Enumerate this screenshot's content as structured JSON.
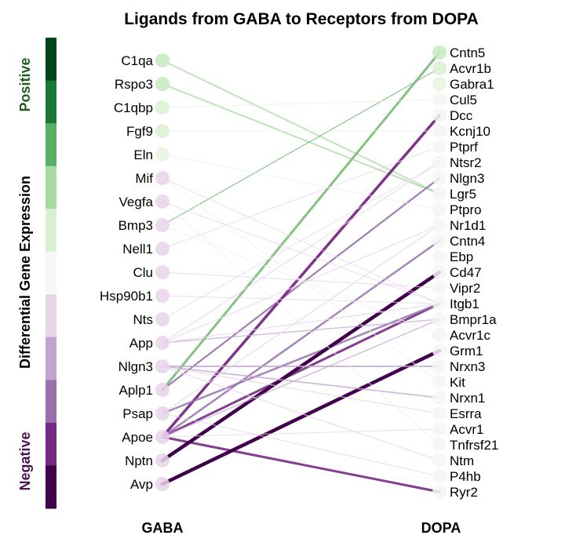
{
  "chart_data": {
    "type": "bipartite-network",
    "title": "Ligands from GABA to Receptors from DOPA",
    "left_axis_label": "GABA",
    "right_axis_label": "DOPA",
    "legend": {
      "title": "Differential Gene Expression",
      "positive_label": "Positive",
      "negative_label": "Negative",
      "positive_color": "#1b5e20",
      "negative_color": "#4a1350",
      "colors": [
        "#00441b",
        "#1b7837",
        "#5aae61",
        "#a6dba0",
        "#d9f0d3",
        "#f7f7f7",
        "#e7d4e8",
        "#c2a5cf",
        "#9970ab",
        "#762a83",
        "#40004b"
      ]
    },
    "ligands": [
      {
        "name": "C1qa",
        "level": 3
      },
      {
        "name": "Rspo3",
        "level": 3
      },
      {
        "name": "C1qbp",
        "level": 2
      },
      {
        "name": "Fgf9",
        "level": 2
      },
      {
        "name": "Eln",
        "level": 1
      },
      {
        "name": "Mif",
        "level": -1
      },
      {
        "name": "Vegfa",
        "level": -1
      },
      {
        "name": "Bmp3",
        "level": -1
      },
      {
        "name": "Nell1",
        "level": -1
      },
      {
        "name": "Clu",
        "level": -1
      },
      {
        "name": "Hsp90b1",
        "level": -1
      },
      {
        "name": "Nts",
        "level": -1
      },
      {
        "name": "App",
        "level": -1
      },
      {
        "name": "Nlgn3",
        "level": -1
      },
      {
        "name": "Aplp1",
        "level": -1
      },
      {
        "name": "Psap",
        "level": -1
      },
      {
        "name": "Apoe",
        "level": -1
      },
      {
        "name": "Nptn",
        "level": -1
      },
      {
        "name": "Avp",
        "level": -1
      }
    ],
    "receptors": [
      {
        "name": "Cntn5",
        "level": 3
      },
      {
        "name": "Acvr1b",
        "level": 2
      },
      {
        "name": "Gabra1",
        "level": 1
      },
      {
        "name": "Cul5",
        "level": 0
      },
      {
        "name": "Dcc",
        "level": 0
      },
      {
        "name": "Kcnj10",
        "level": 0
      },
      {
        "name": "Ptprf",
        "level": 0
      },
      {
        "name": "Ntsr2",
        "level": 0
      },
      {
        "name": "Nlgn3",
        "level": 0
      },
      {
        "name": "Lgr5",
        "level": 0
      },
      {
        "name": "Ptpro",
        "level": 0
      },
      {
        "name": "Nr1d1",
        "level": 0
      },
      {
        "name": "Cntn4",
        "level": 0
      },
      {
        "name": "Ebp",
        "level": 0
      },
      {
        "name": "Cd47",
        "level": 0
      },
      {
        "name": "Vipr2",
        "level": 0
      },
      {
        "name": "Itgb1",
        "level": 0
      },
      {
        "name": "Bmpr1a",
        "level": 0
      },
      {
        "name": "Acvr1c",
        "level": 0
      },
      {
        "name": "Grm1",
        "level": 0
      },
      {
        "name": "Nrxn3",
        "level": 0
      },
      {
        "name": "Kit",
        "level": 0
      },
      {
        "name": "Nrxn1",
        "level": 0
      },
      {
        "name": "Esrra",
        "level": 0
      },
      {
        "name": "Acvr1",
        "level": 0
      },
      {
        "name": "Tnfrsf21",
        "level": 0
      },
      {
        "name": "Ntm",
        "level": 0
      },
      {
        "name": "P4hb",
        "level": 0
      },
      {
        "name": "Ryr2",
        "level": 0
      }
    ],
    "links": [
      {
        "from": "C1qa",
        "to": "Lgr5",
        "color": "#a6dba0",
        "width": 1.8,
        "opacity": 0.8
      },
      {
        "from": "Rspo3",
        "to": "Lgr5",
        "color": "#a6dba0",
        "width": 1.8,
        "opacity": 0.8
      },
      {
        "from": "Bmp3",
        "to": "Acvr1b",
        "color": "#5aae61",
        "width": 1.0,
        "opacity": 0.85
      },
      {
        "from": "Aplp1",
        "to": "Cntn5",
        "color": "#7fbf7b",
        "width": 3.0,
        "opacity": 0.95
      },
      {
        "from": "Aplp1",
        "to": "Nlgn3",
        "color": "#9970ab",
        "width": 2.2,
        "opacity": 0.9
      },
      {
        "from": "Apoe",
        "to": "Dcc",
        "color": "#762a83",
        "width": 3.5,
        "opacity": 0.95
      },
      {
        "from": "Apoe",
        "to": "Itgb1",
        "color": "#762a83",
        "width": 3.0,
        "opacity": 0.9
      },
      {
        "from": "Apoe",
        "to": "Ryr2",
        "color": "#762a83",
        "width": 3.0,
        "opacity": 0.9
      },
      {
        "from": "Apoe",
        "to": "Cntn4",
        "color": "#9970ab",
        "width": 2.5,
        "opacity": 0.85
      },
      {
        "from": "Psap",
        "to": "Itgb1",
        "color": "#9970ab",
        "width": 2.5,
        "opacity": 0.85
      },
      {
        "from": "Nptn",
        "to": "Cd47",
        "color": "#40004b",
        "width": 4.5,
        "opacity": 1.0
      },
      {
        "from": "Avp",
        "to": "Grm1",
        "color": "#40004b",
        "width": 4.5,
        "opacity": 1.0
      },
      {
        "from": "Nlgn3",
        "to": "Nrxn3",
        "color": "#c2a5cf",
        "width": 2.0,
        "opacity": 0.8
      },
      {
        "from": "Nlgn3",
        "to": "Nrxn1",
        "color": "#c2a5cf",
        "width": 1.8,
        "opacity": 0.75
      },
      {
        "from": "App",
        "to": "Bmpr1a",
        "color": "#c2a5cf",
        "width": 1.5,
        "opacity": 0.7
      },
      {
        "from": "Apoe",
        "to": "Bmpr1a",
        "color": "#c2a5cf",
        "width": 1.5,
        "opacity": 0.7
      },
      {
        "from": "Psap",
        "to": "Nr1d1",
        "color": "#e7d4e8",
        "width": 1.3,
        "opacity": 0.8
      },
      {
        "from": "App",
        "to": "Ntsr2",
        "color": "#e7d4e8",
        "width": 1.2,
        "opacity": 0.8
      },
      {
        "from": "App",
        "to": "Itgb1",
        "color": "#e7d4e8",
        "width": 1.2,
        "opacity": 0.8
      },
      {
        "from": "App",
        "to": "Nr1d1",
        "color": "#e7d4e8",
        "width": 1.2,
        "opacity": 0.8
      },
      {
        "from": "Nlgn3",
        "to": "Ntm",
        "color": "#e7d4e8",
        "width": 1.2,
        "opacity": 0.8
      },
      {
        "from": "Nlgn3",
        "to": "Esrra",
        "color": "#e7d4e8",
        "width": 1.2,
        "opacity": 0.8
      },
      {
        "from": "Mif",
        "to": "Itgb1",
        "color": "#e7d4e8",
        "width": 1.0,
        "opacity": 0.8
      },
      {
        "from": "Vegfa",
        "to": "Itgb1",
        "color": "#e7d4e8",
        "width": 1.0,
        "opacity": 0.8
      },
      {
        "from": "Nell1",
        "to": "Ptprf",
        "color": "#e7d4e8",
        "width": 1.0,
        "opacity": 0.8
      },
      {
        "from": "Clu",
        "to": "Vipr2",
        "color": "#e7d4e8",
        "width": 1.0,
        "opacity": 0.8
      },
      {
        "from": "Hsp90b1",
        "to": "Itgb1",
        "color": "#e7d4e8",
        "width": 1.0,
        "opacity": 0.8
      },
      {
        "from": "Nts",
        "to": "Ntsr2",
        "color": "#e7d4e8",
        "width": 1.0,
        "opacity": 0.8
      },
      {
        "from": "Apoe",
        "to": "Acvr1",
        "color": "#e7d4e8",
        "width": 1.0,
        "opacity": 0.8
      },
      {
        "from": "Psap",
        "to": "P4hb",
        "color": "#e7d4e8",
        "width": 1.0,
        "opacity": 0.8
      },
      {
        "from": "C1qbp",
        "to": "Cul5",
        "color": "#e5f5e0",
        "width": 1.0,
        "opacity": 0.8
      },
      {
        "from": "Fgf9",
        "to": "Kcnj10",
        "color": "#e5f5e0",
        "width": 1.0,
        "opacity": 0.8
      },
      {
        "from": "Eln",
        "to": "Ptpro",
        "color": "#e5f5e0",
        "width": 1.0,
        "opacity": 0.8
      },
      {
        "from": "Bmp3",
        "to": "Acvr1c",
        "color": "#f0f0f0",
        "width": 1.0,
        "opacity": 0.9
      },
      {
        "from": "Mif",
        "to": "Kit",
        "color": "#f0f0f0",
        "width": 1.0,
        "opacity": 0.9
      },
      {
        "from": "Vegfa",
        "to": "Tnfrsf21",
        "color": "#f0f0f0",
        "width": 1.0,
        "opacity": 0.9
      }
    ]
  }
}
